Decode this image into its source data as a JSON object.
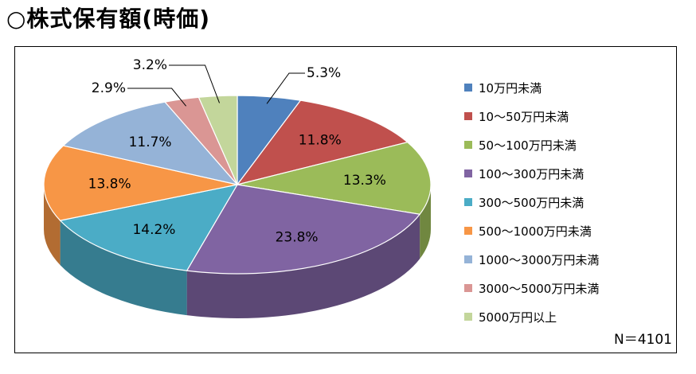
{
  "title": "○株式保有額(時価)",
  "note": "N＝4101",
  "chart_data": {
    "type": "pie",
    "categories": [
      "10万円未満",
      "10～50万円未満",
      "50～100万円未満",
      "100～300万円未満",
      "300～500万円未満",
      "500～1000万円未満",
      "1000～3000万円未満",
      "3000～5000万円未満",
      "5000万円以上"
    ],
    "values": [
      5.3,
      11.8,
      13.3,
      23.8,
      14.2,
      13.8,
      11.7,
      2.9,
      3.2
    ],
    "labels": [
      "5.3%",
      "11.8%",
      "13.3%",
      "23.8%",
      "14.2%",
      "13.8%",
      "11.7%",
      "2.9%",
      "3.2%"
    ],
    "colors": [
      "#4F81BD",
      "#C0504D",
      "#9BBB59",
      "#8064A2",
      "#4BACC6",
      "#F79646",
      "#95B3D7",
      "#DA9694",
      "#C3D69B"
    ],
    "legend_position": "right",
    "style": "3d"
  }
}
